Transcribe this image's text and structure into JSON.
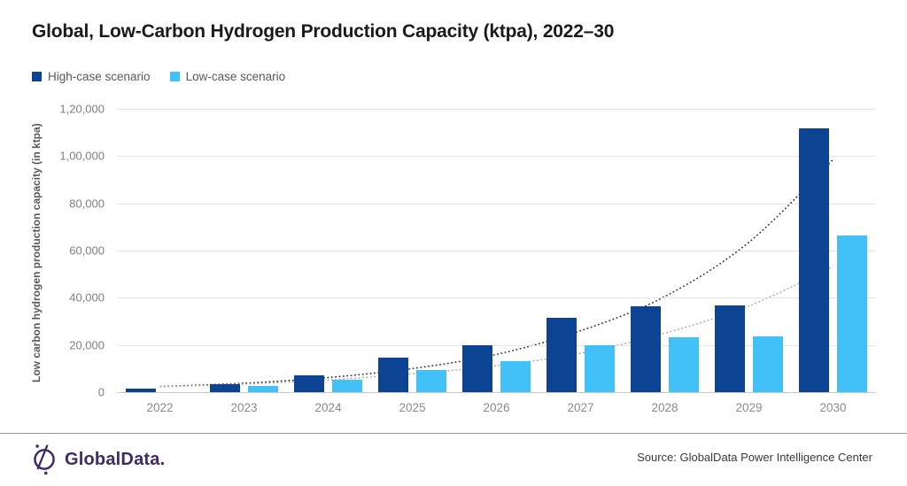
{
  "title": "Global, Low-Carbon Hydrogen Production Capacity (ktpa), 2022–30",
  "legend": [
    {
      "label": "High-case scenario",
      "color": "#0c4493"
    },
    {
      "label": "Low-case scenario",
      "color": "#41c1f8"
    }
  ],
  "colors": {
    "high_bar": "#0c4493",
    "low_bar": "#41c1f8",
    "title_text": "#1a1a1a",
    "axis_text": "#7f7f7f",
    "legend_text": "#595959",
    "gridline": "#e4e4e4",
    "baseline": "#c9c9c9",
    "trend_high": "#2f2f2f",
    "trend_low": "#a8a8a8",
    "logo_purple": "#3e2b62"
  },
  "chart_data": {
    "type": "bar",
    "title": "Global, Low-Carbon Hydrogen Production Capacity (ktpa), 2022–30",
    "xlabel": "",
    "ylabel": "Low carbon hydrogen production capacity (in ktpa)",
    "categories": [
      "2022",
      "2023",
      "2024",
      "2025",
      "2026",
      "2027",
      "2028",
      "2029",
      "2030"
    ],
    "series": [
      {
        "name": "High-case scenario",
        "color": "#0c4493",
        "values": [
          1500,
          3500,
          7200,
          14500,
          20000,
          31500,
          36300,
          36800,
          111800
        ]
      },
      {
        "name": "Low-case scenario",
        "color": "#41c1f8",
        "values": [
          0,
          2700,
          5300,
          9500,
          13000,
          20000,
          23200,
          23700,
          66500
        ]
      }
    ],
    "trendlines": [
      {
        "name": "High-case trend",
        "color": "#2f2f2f",
        "values": [
          2400,
          3800,
          6200,
          10000,
          16000,
          26000,
          40500,
          63500,
          98500
        ]
      },
      {
        "name": "Low-case trend",
        "color": "#a8a8a8",
        "values": [
          2300,
          3400,
          5200,
          7800,
          11200,
          16500,
          25000,
          36500,
          53200
        ]
      }
    ],
    "ylim": [
      0,
      120000
    ],
    "yticks": [
      {
        "value": 0,
        "label": "0"
      },
      {
        "value": 20000,
        "label": "20,000"
      },
      {
        "value": 40000,
        "label": "40,000"
      },
      {
        "value": 60000,
        "label": "60,000"
      },
      {
        "value": 80000,
        "label": "80,000"
      },
      {
        "value": 100000,
        "label": "1,00,000"
      },
      {
        "value": 120000,
        "label": "1,20,000"
      }
    ],
    "grid": "horizontal",
    "legend_position": "top-left"
  },
  "footer": {
    "logo_text": "GlobalData.",
    "source": "Source: GlobalData Power Intelligence Center"
  }
}
